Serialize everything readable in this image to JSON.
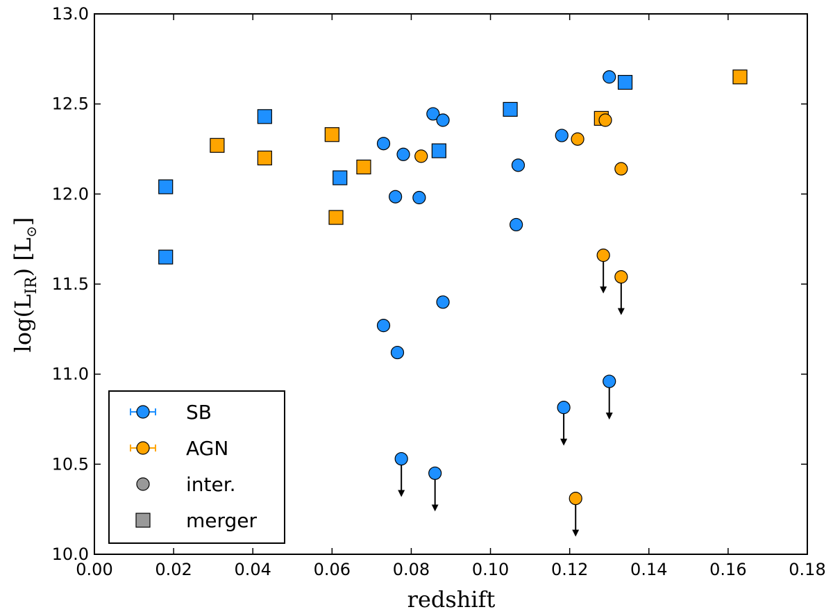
{
  "chart_data": {
    "type": "scatter",
    "xlabel": "redshift",
    "ylabel": {
      "prefix": "log(L",
      "subscript": "IR",
      "middle": ") [L",
      "sun_symbol": "⊙",
      "suffix": "]"
    },
    "xlim": [
      0.0,
      0.18
    ],
    "ylim": [
      10.0,
      13.0
    ],
    "xticks": [
      "0.00",
      "0.02",
      "0.04",
      "0.06",
      "0.08",
      "0.10",
      "0.12",
      "0.14",
      "0.16",
      "0.18"
    ],
    "yticks": [
      "10.0",
      "10.5",
      "11.0",
      "11.5",
      "12.0",
      "12.5",
      "13.0"
    ],
    "colors": {
      "SB": "#1e90ff",
      "AGN": "#ffa500",
      "neutral": "#999999"
    },
    "legend": {
      "placement": "lower-left",
      "entries": [
        {
          "label": "SB",
          "kind": "errorbar-circle",
          "color": "SB"
        },
        {
          "label": "AGN",
          "kind": "errorbar-circle",
          "color": "AGN"
        },
        {
          "label": "inter.",
          "kind": "circle",
          "color": "neutral"
        },
        {
          "label": "merger",
          "kind": "square",
          "color": "neutral"
        }
      ]
    },
    "points": [
      {
        "x": 0.018,
        "y": 12.04,
        "type": "SB",
        "shape": "square"
      },
      {
        "x": 0.018,
        "y": 11.65,
        "type": "SB",
        "shape": "square"
      },
      {
        "x": 0.031,
        "y": 12.27,
        "type": "AGN",
        "shape": "square"
      },
      {
        "x": 0.043,
        "y": 12.43,
        "type": "SB",
        "shape": "square"
      },
      {
        "x": 0.043,
        "y": 12.2,
        "type": "AGN",
        "shape": "square"
      },
      {
        "x": 0.06,
        "y": 12.33,
        "type": "AGN",
        "shape": "square"
      },
      {
        "x": 0.061,
        "y": 11.87,
        "type": "AGN",
        "shape": "square"
      },
      {
        "x": 0.062,
        "y": 12.09,
        "type": "SB",
        "shape": "square"
      },
      {
        "x": 0.068,
        "y": 12.15,
        "type": "AGN",
        "shape": "square"
      },
      {
        "x": 0.087,
        "y": 12.24,
        "type": "SB",
        "shape": "square"
      },
      {
        "x": 0.105,
        "y": 12.47,
        "type": "SB",
        "shape": "square"
      },
      {
        "x": 0.128,
        "y": 12.42,
        "type": "AGN",
        "shape": "square"
      },
      {
        "x": 0.134,
        "y": 12.62,
        "type": "SB",
        "shape": "square"
      },
      {
        "x": 0.163,
        "y": 12.65,
        "type": "AGN",
        "shape": "square"
      },
      {
        "x": 0.073,
        "y": 12.28,
        "type": "SB",
        "shape": "circle"
      },
      {
        "x": 0.076,
        "y": 11.985,
        "type": "SB",
        "shape": "circle"
      },
      {
        "x": 0.078,
        "y": 12.22,
        "type": "SB",
        "shape": "circle"
      },
      {
        "x": 0.082,
        "y": 11.98,
        "type": "SB",
        "shape": "circle"
      },
      {
        "x": 0.0825,
        "y": 12.21,
        "type": "AGN",
        "shape": "circle"
      },
      {
        "x": 0.0855,
        "y": 12.445,
        "type": "SB",
        "shape": "circle"
      },
      {
        "x": 0.088,
        "y": 12.41,
        "type": "SB",
        "shape": "circle"
      },
      {
        "x": 0.107,
        "y": 12.16,
        "type": "SB",
        "shape": "circle"
      },
      {
        "x": 0.1065,
        "y": 11.83,
        "type": "SB",
        "shape": "circle"
      },
      {
        "x": 0.118,
        "y": 12.325,
        "type": "SB",
        "shape": "circle"
      },
      {
        "x": 0.122,
        "y": 12.305,
        "type": "AGN",
        "shape": "circle"
      },
      {
        "x": 0.129,
        "y": 12.41,
        "type": "AGN",
        "shape": "circle"
      },
      {
        "x": 0.13,
        "y": 12.65,
        "type": "SB",
        "shape": "circle"
      },
      {
        "x": 0.133,
        "y": 12.14,
        "type": "AGN",
        "shape": "circle"
      },
      {
        "x": 0.073,
        "y": 11.27,
        "type": "SB",
        "shape": "circle"
      },
      {
        "x": 0.0765,
        "y": 11.12,
        "type": "SB",
        "shape": "circle"
      },
      {
        "x": 0.088,
        "y": 11.4,
        "type": "SB",
        "shape": "circle"
      },
      {
        "x": 0.1285,
        "y": 11.66,
        "type": "AGN",
        "shape": "circle",
        "upper_limit": true
      },
      {
        "x": 0.133,
        "y": 11.54,
        "type": "AGN",
        "shape": "circle",
        "upper_limit": true
      },
      {
        "x": 0.1185,
        "y": 10.815,
        "type": "SB",
        "shape": "circle",
        "upper_limit": true
      },
      {
        "x": 0.13,
        "y": 10.96,
        "type": "SB",
        "shape": "circle",
        "upper_limit": true
      },
      {
        "x": 0.0775,
        "y": 10.53,
        "type": "SB",
        "shape": "circle",
        "upper_limit": true
      },
      {
        "x": 0.086,
        "y": 10.45,
        "type": "SB",
        "shape": "circle",
        "upper_limit": true
      },
      {
        "x": 0.1215,
        "y": 10.31,
        "type": "AGN",
        "shape": "circle",
        "upper_limit": true
      }
    ]
  }
}
